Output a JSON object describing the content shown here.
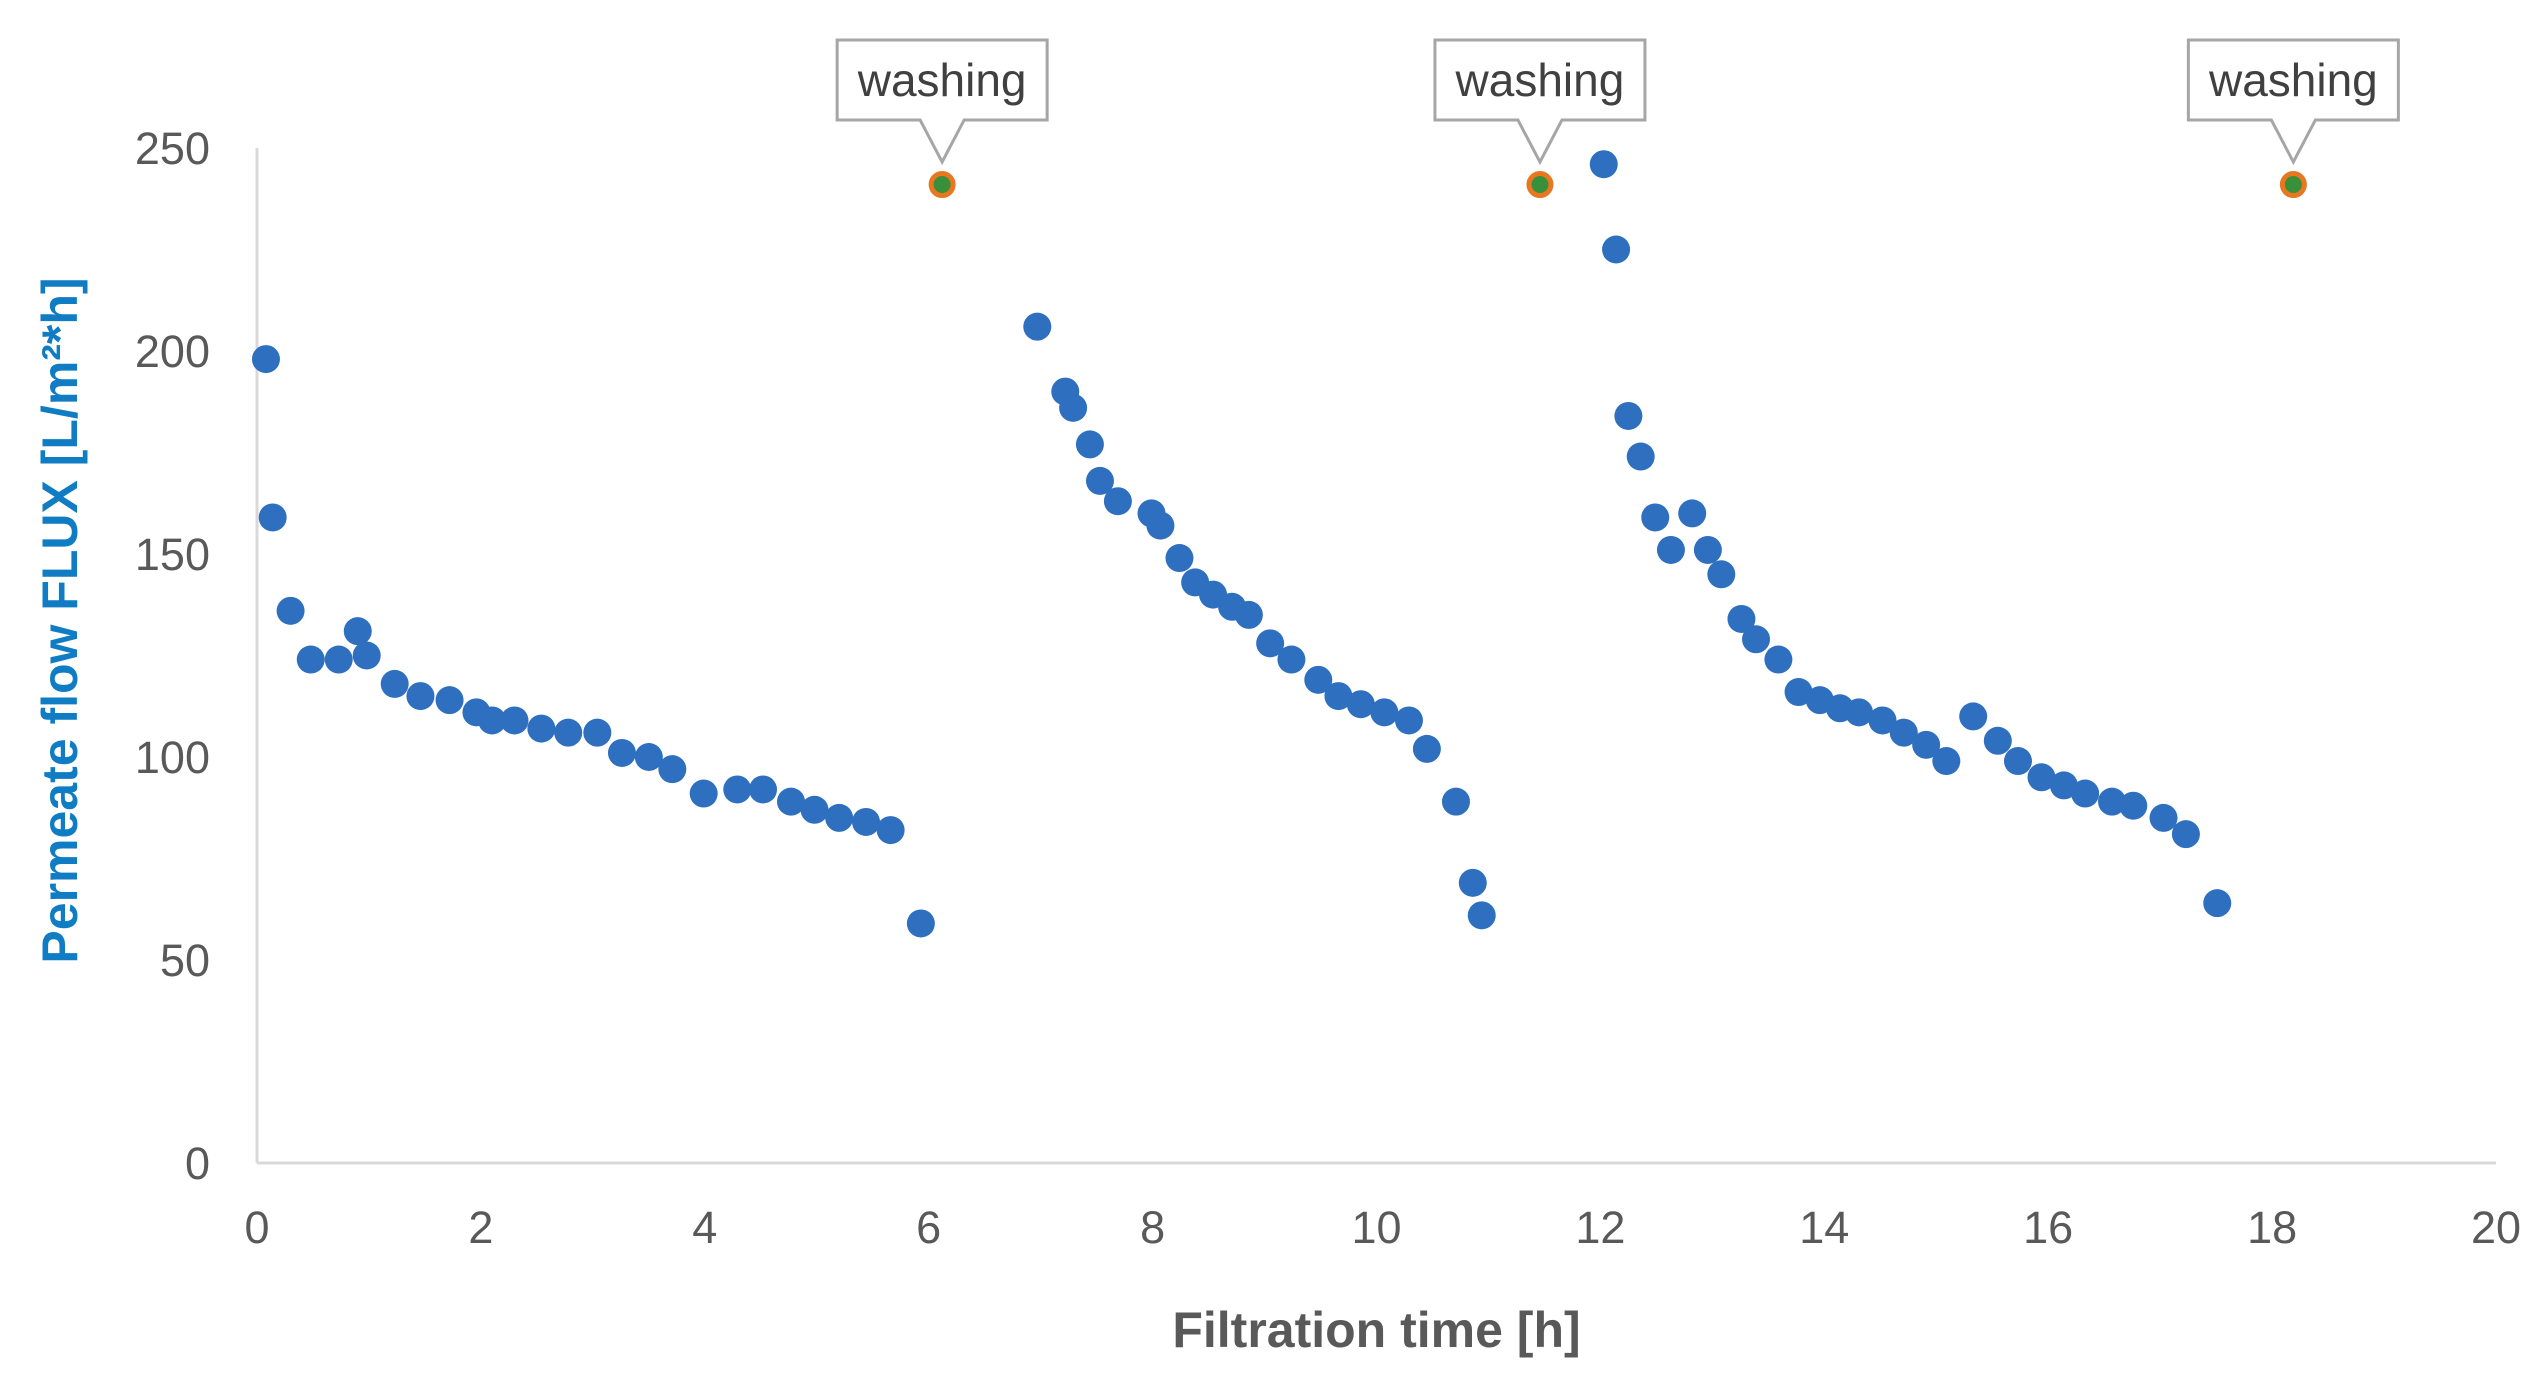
{
  "chart_data": {
    "type": "scatter",
    "title": "",
    "xlabel": "Filtration time [h]",
    "ylabel": "Permeate flow FLUX [L/m²*h]",
    "xlim": [
      0,
      20
    ],
    "ylim": [
      0,
      250
    ],
    "xticks": [
      0,
      2,
      4,
      6,
      8,
      10,
      12,
      14,
      16,
      18,
      20
    ],
    "yticks": [
      0,
      50,
      100,
      150,
      200,
      250
    ],
    "grid": false,
    "legend": "none",
    "colors": {
      "series": "#2E6FBF",
      "washing_fill": "#3A8F3A",
      "washing_stroke": "#E87722",
      "axis": "#D9D9D9",
      "tick_text": "#595959",
      "ylabel_text": "#0F7CC4",
      "callout_border": "#A6A6A6"
    },
    "series": [
      {
        "name": "Permeate flow",
        "points": [
          [
            0.08,
            198
          ],
          [
            0.14,
            159
          ],
          [
            0.3,
            136
          ],
          [
            0.48,
            124
          ],
          [
            0.73,
            124
          ],
          [
            0.9,
            131
          ],
          [
            0.98,
            125
          ],
          [
            1.23,
            118
          ],
          [
            1.46,
            115
          ],
          [
            1.72,
            114
          ],
          [
            1.96,
            111
          ],
          [
            2.1,
            109
          ],
          [
            2.3,
            109
          ],
          [
            2.54,
            107
          ],
          [
            2.78,
            106
          ],
          [
            3.04,
            106
          ],
          [
            3.26,
            101
          ],
          [
            3.5,
            100
          ],
          [
            3.71,
            97
          ],
          [
            3.99,
            91
          ],
          [
            4.29,
            92
          ],
          [
            4.52,
            92
          ],
          [
            4.77,
            89
          ],
          [
            4.98,
            87
          ],
          [
            5.2,
            85
          ],
          [
            5.44,
            84
          ],
          [
            5.66,
            82
          ],
          [
            5.93,
            59
          ],
          [
            6.97,
            206
          ],
          [
            7.22,
            190
          ],
          [
            7.29,
            186
          ],
          [
            7.44,
            177
          ],
          [
            7.53,
            168
          ],
          [
            7.69,
            163
          ],
          [
            7.99,
            160
          ],
          [
            8.07,
            157
          ],
          [
            8.24,
            149
          ],
          [
            8.38,
            143
          ],
          [
            8.54,
            140
          ],
          [
            8.71,
            137
          ],
          [
            8.86,
            135
          ],
          [
            9.05,
            128
          ],
          [
            9.24,
            124
          ],
          [
            9.48,
            119
          ],
          [
            9.66,
            115
          ],
          [
            9.86,
            113
          ],
          [
            10.07,
            111
          ],
          [
            10.29,
            109
          ],
          [
            10.45,
            102
          ],
          [
            10.71,
            89
          ],
          [
            10.86,
            69
          ],
          [
            10.94,
            61
          ],
          [
            12.03,
            246
          ],
          [
            12.14,
            225
          ],
          [
            12.25,
            184
          ],
          [
            12.36,
            174
          ],
          [
            12.49,
            159
          ],
          [
            12.63,
            151
          ],
          [
            12.82,
            160
          ],
          [
            12.96,
            151
          ],
          [
            13.08,
            145
          ],
          [
            13.26,
            134
          ],
          [
            13.39,
            129
          ],
          [
            13.59,
            124
          ],
          [
            13.77,
            116
          ],
          [
            13.96,
            114
          ],
          [
            14.14,
            112
          ],
          [
            14.31,
            111
          ],
          [
            14.52,
            109
          ],
          [
            14.71,
            106
          ],
          [
            14.91,
            103
          ],
          [
            15.09,
            99
          ],
          [
            15.33,
            110
          ],
          [
            15.55,
            104
          ],
          [
            15.73,
            99
          ],
          [
            15.94,
            95
          ],
          [
            16.14,
            93
          ],
          [
            16.33,
            91
          ],
          [
            16.57,
            89
          ],
          [
            16.76,
            88
          ],
          [
            17.03,
            85
          ],
          [
            17.23,
            81
          ],
          [
            17.51,
            64
          ]
        ]
      },
      {
        "name": "washing",
        "points": [
          [
            6.12,
            241
          ],
          [
            11.46,
            241
          ],
          [
            18.19,
            241
          ]
        ]
      }
    ],
    "annotations": [
      {
        "text": "washing",
        "x": 6.12,
        "y": 241
      },
      {
        "text": "washing",
        "x": 11.46,
        "y": 241
      },
      {
        "text": "washing",
        "x": 18.19,
        "y": 241
      }
    ]
  }
}
